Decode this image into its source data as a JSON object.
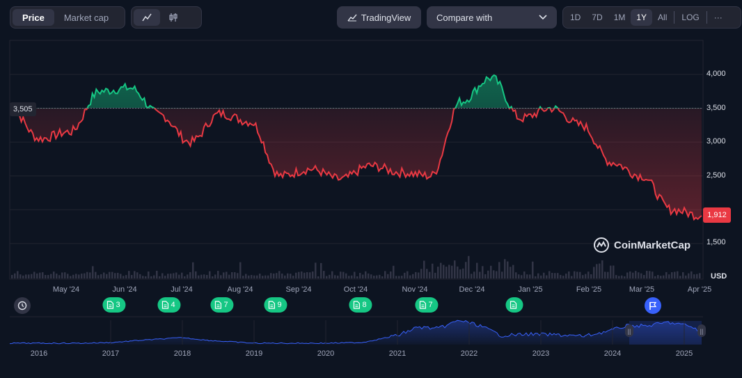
{
  "toolbar": {
    "price_label": "Price",
    "marketcap_label": "Market cap",
    "tradingview_label": "TradingView",
    "compare_label": "Compare with",
    "ranges": [
      "1D",
      "7D",
      "1M",
      "1Y",
      "All"
    ],
    "log_label": "LOG",
    "more_label": "···"
  },
  "chart": {
    "currency": "USD",
    "current_price": "1,912",
    "reference_price": "3,505",
    "watermark": "CoinMarketCap",
    "y_ticks": [
      "4,000",
      "3,500",
      "3,000",
      "2,500",
      "1,500"
    ],
    "x_ticks": [
      "May '24",
      "Jun '24",
      "Jul '24",
      "Aug '24",
      "Sep '24",
      "Oct '24",
      "Nov '24",
      "Dec '24",
      "Jan '25",
      "Feb '25",
      "Mar '25",
      "Apr '25"
    ],
    "up_color": "#16c784",
    "down_color": "#ea3943"
  },
  "chart_data": {
    "type": "line",
    "ylim": [
      1500,
      4300
    ],
    "reference": 3505,
    "x": [
      "Apr '24",
      "May '24",
      "May '24 mid",
      "Jun '24",
      "Jun '24 mid",
      "Jul '24",
      "Jul '24 mid",
      "Aug '24",
      "Aug '24 mid",
      "Sep '24",
      "Sep '24 mid",
      "Oct '24",
      "Oct '24 mid",
      "Nov '24",
      "Nov '24 mid",
      "Dec '24",
      "Dec '24 mid",
      "Jan '25",
      "Jan '25 mid",
      "Feb '25",
      "Feb '25 mid",
      "Mar '25",
      "Mar '25 mid",
      "Apr '25"
    ],
    "values": [
      3505,
      3050,
      3150,
      3750,
      3800,
      3400,
      3000,
      3420,
      3300,
      2500,
      2600,
      2450,
      2650,
      2550,
      2500,
      3600,
      3950,
      3350,
      3500,
      3250,
      2700,
      2500,
      2000,
      1912
    ]
  },
  "events": [
    {
      "count": "3"
    },
    {
      "count": "4"
    },
    {
      "count": "7"
    },
    {
      "count": "9"
    },
    {
      "count": "8"
    },
    {
      "count": "7"
    },
    {
      "count": ""
    }
  ],
  "navigator": {
    "years": [
      "2016",
      "2017",
      "2018",
      "2019",
      "2020",
      "2021",
      "2022",
      "2023",
      "2024",
      "2025"
    ]
  }
}
